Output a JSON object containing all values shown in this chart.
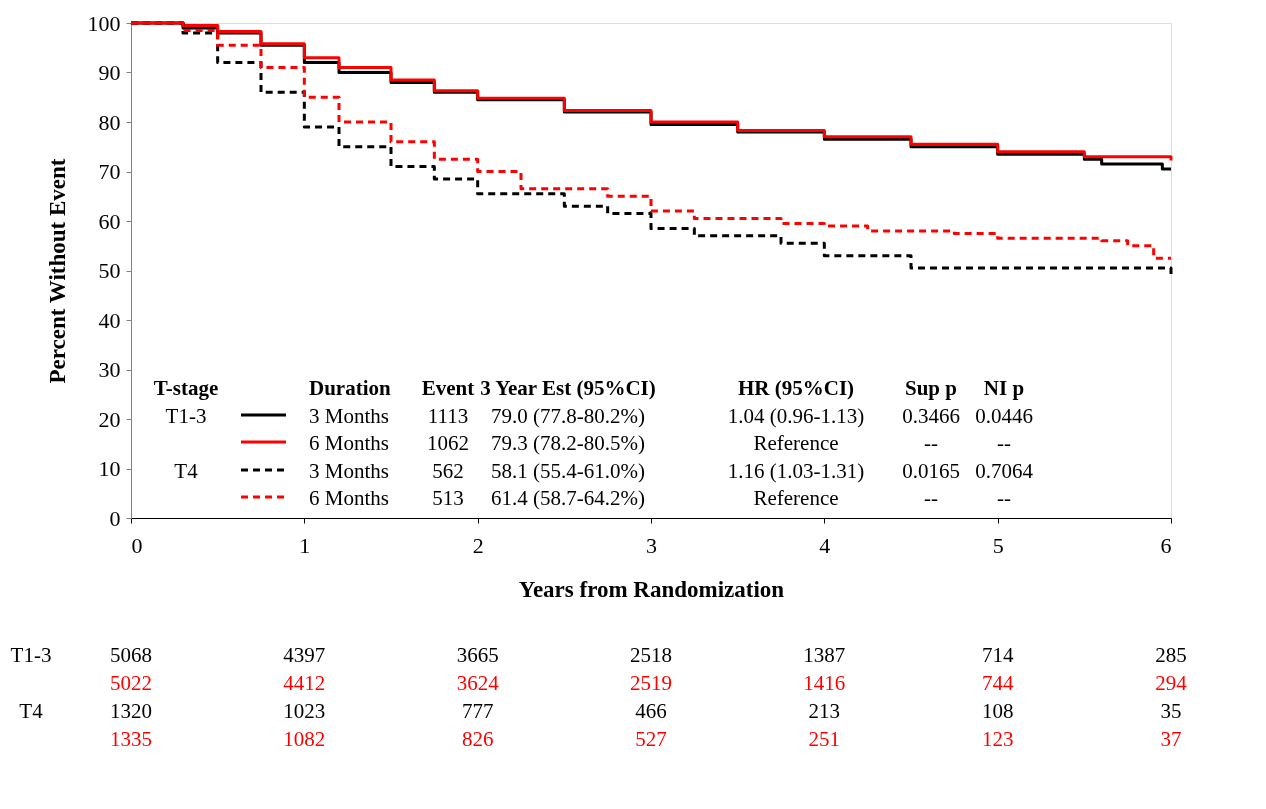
{
  "chart_data": {
    "type": "step",
    "xlabel": "Years from Randomization",
    "ylabel": "Percent Without Event",
    "xlim": [
      0,
      6
    ],
    "ylim": [
      0,
      100
    ],
    "xticks": [
      0,
      1,
      2,
      3,
      4,
      5,
      6
    ],
    "yticks": [
      0,
      10,
      20,
      30,
      40,
      50,
      60,
      70,
      80,
      90,
      100
    ],
    "grid": false,
    "series": [
      {
        "color": "#000000",
        "line_style": "solid",
        "x": [
          0,
          0.3,
          0.5,
          0.75,
          1.0,
          1.2,
          1.5,
          1.75,
          2.0,
          2.5,
          3.0,
          3.5,
          4.0,
          4.5,
          5.0,
          5.5,
          5.6,
          5.95,
          6.0
        ],
        "values": [
          100,
          99,
          98,
          95.5,
          92,
          90,
          88,
          86,
          84.5,
          82,
          79.5,
          78,
          76.5,
          75,
          73.5,
          72.5,
          71.5,
          70.5,
          70.5
        ]
      },
      {
        "color": "#ff0000",
        "line_style": "solid",
        "x": [
          0,
          0.3,
          0.5,
          0.75,
          1.0,
          1.2,
          1.5,
          1.75,
          2.0,
          2.5,
          3.0,
          3.5,
          4.0,
          4.5,
          5.0,
          5.5,
          6.0
        ],
        "values": [
          100,
          99.5,
          98.3,
          95.8,
          93,
          91,
          88.5,
          86.3,
          84.8,
          82.3,
          80,
          78.3,
          77,
          75.5,
          74,
          73,
          72.2
        ]
      },
      {
        "color": "#000000",
        "line_style": "dashed",
        "x": [
          0,
          0.3,
          0.5,
          0.75,
          1.0,
          1.2,
          1.5,
          1.75,
          2.0,
          2.5,
          2.75,
          3.0,
          3.25,
          3.75,
          4.0,
          4.5,
          5.0,
          5.5,
          5.99,
          6.0
        ],
        "values": [
          100,
          98,
          92,
          86,
          79,
          75,
          71,
          68.5,
          65.5,
          63,
          61.5,
          58.5,
          57,
          55.5,
          53,
          50.5,
          50.5,
          50.5,
          50.5,
          49
        ]
      },
      {
        "color": "#ff0000",
        "line_style": "dashed",
        "x": [
          0,
          0.3,
          0.5,
          0.75,
          1.0,
          1.2,
          1.5,
          1.75,
          2.0,
          2.25,
          2.75,
          3.0,
          3.25,
          3.75,
          4.0,
          4.25,
          4.75,
          5.0,
          5.6,
          5.75,
          5.9,
          6.0
        ],
        "values": [
          100,
          98.5,
          95.5,
          91,
          85,
          80,
          76,
          72.5,
          70,
          66.5,
          65,
          62,
          60.5,
          59.5,
          59,
          58,
          57.5,
          56.5,
          56,
          55,
          52.5,
          52.5
        ]
      }
    ],
    "annotations": [
      "T-stage",
      "Duration",
      "Event",
      "3 Year Est (95%CI)",
      "HR (95%CI)",
      "Sup p",
      "NI p",
      "T1-3",
      "3 Months",
      "1113",
      "79.0 (77.8-80.2%)",
      "1.04 (0.96-1.13)",
      "0.3466",
      "0.0446",
      "6 Months",
      "1062",
      "79.3 (78.2-80.5%)",
      "Reference",
      "--",
      "--",
      "T4",
      "3 Months",
      "562",
      "58.1 (55.4-61.0%)",
      "1.16 (1.03-1.31)",
      "0.0165",
      "0.7064",
      "6 Months",
      "513",
      "61.4 (58.7-64.2%)",
      "Reference",
      "--",
      "--",
      "T1-3",
      "5068",
      "4397",
      "3665",
      "2518",
      "1387",
      "714",
      "285",
      "5022",
      "4412",
      "3624",
      "2519",
      "1416",
      "744",
      "294",
      "T4",
      "1320",
      "1023",
      "777",
      "466",
      "213",
      "108",
      "35",
      "1335",
      "1082",
      "826",
      "527",
      "251",
      "123",
      "37"
    ]
  }
}
